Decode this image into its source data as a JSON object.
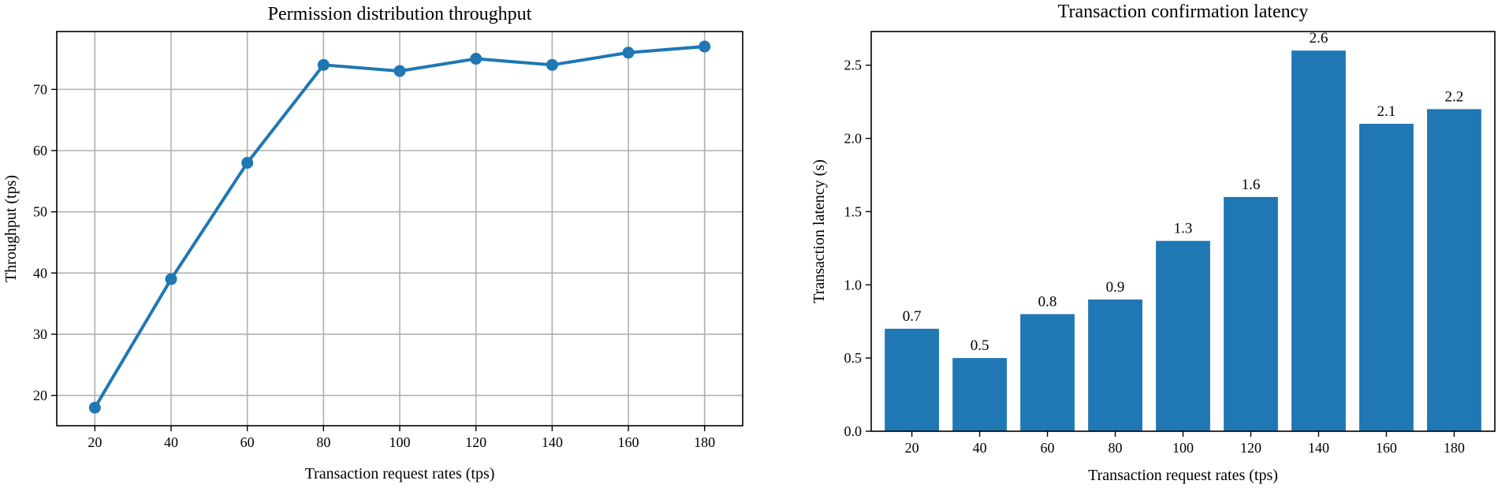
{
  "chart_data": [
    {
      "type": "line",
      "title": "Permission distribution throughput",
      "xlabel": "Transaction request rates (tps)",
      "ylabel": "Throughput (tps)",
      "x": [
        20,
        40,
        60,
        80,
        100,
        120,
        140,
        160,
        180
      ],
      "series": [
        {
          "values": [
            18,
            39,
            58,
            74,
            73,
            75,
            74,
            76,
            77
          ]
        }
      ],
      "xlim": [
        10,
        190
      ],
      "ylim": [
        15.05,
        79.45
      ],
      "xticks": [
        20,
        40,
        60,
        80,
        100,
        120,
        140,
        160,
        180
      ],
      "yticks": [
        20,
        30,
        40,
        50,
        60,
        70
      ],
      "grid": true,
      "line_color": "#1f77b4"
    },
    {
      "type": "bar",
      "title": "Transaction confirmation latency",
      "xlabel": "Transaction request rates (tps)",
      "ylabel": "Transaction latency (s)",
      "categories": [
        "20",
        "40",
        "60",
        "80",
        "100",
        "120",
        "140",
        "160",
        "180"
      ],
      "values": [
        0.7,
        0.5,
        0.8,
        0.9,
        1.3,
        1.6,
        2.6,
        2.1,
        2.2
      ],
      "data_labels": [
        "0.7",
        "0.5",
        "0.8",
        "0.9",
        "1.3",
        "1.6",
        "2.6",
        "2.1",
        "2.2"
      ],
      "ylim": [
        0,
        2.73
      ],
      "yticks": [
        0.0,
        0.5,
        1.0,
        1.5,
        2.0,
        2.5
      ],
      "ytick_labels": [
        "0.0",
        "0.5",
        "1.0",
        "1.5",
        "2.0",
        "2.5"
      ],
      "grid": false,
      "bar_color": "#1f77b4"
    }
  ]
}
